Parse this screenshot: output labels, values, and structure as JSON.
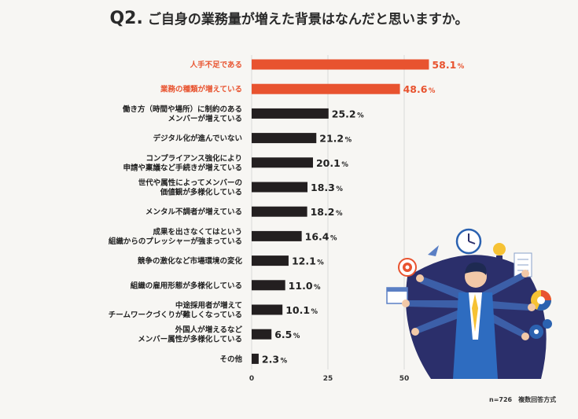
{
  "title": {
    "q": "Q2.",
    "text": "ご自身の業務量が増えた背景はなんだと思いますか。"
  },
  "chart_data": {
    "type": "bar",
    "orientation": "horizontal",
    "title": "Q2. ご自身の業務量が増えた背景はなんだと思いますか。",
    "categories": [
      [
        "人手不足である"
      ],
      [
        "業務の種類が増えている"
      ],
      [
        "働き方（時間や場所）に制約のある",
        "メンバーが増えている"
      ],
      [
        "デジタル化が進んでいない"
      ],
      [
        "コンプライアンス強化により",
        "申請や稟議など手続きが増えている"
      ],
      [
        "世代や属性によってメンバーの",
        "価値観が多様化している"
      ],
      [
        "メンタル不調者が増えている"
      ],
      [
        "成果を出さなくてはという",
        "組織からのプレッシャーが強まっている"
      ],
      [
        "競争の激化など市場環境の変化"
      ],
      [
        "組織の雇用形態が多様化している"
      ],
      [
        "中途採用者が増えて",
        "チームワークづくりが難しくなっている"
      ],
      [
        "外国人が増えるなど",
        "メンバー属性が多様化している"
      ],
      [
        "その他"
      ]
    ],
    "values": [
      58.1,
      48.6,
      25.2,
      21.2,
      20.1,
      18.3,
      18.2,
      16.4,
      12.1,
      11.0,
      10.1,
      6.5,
      2.3
    ],
    "value_labels": [
      "58.1",
      "48.6",
      "25.2",
      "21.2",
      "20.1",
      "18.3",
      "18.2",
      "16.4",
      "12.1",
      "11.0",
      "10.1",
      "6.5",
      "2.3"
    ],
    "unit": "%",
    "highlight_count": 2,
    "xticks": [
      "0",
      "25",
      "50"
    ],
    "xlim": [
      0,
      60
    ],
    "colors": {
      "highlight": "#e8532f",
      "normal": "#231f20",
      "grid": "#d9d9d9"
    },
    "grid": true
  },
  "note": "n=726　複数回答方式"
}
